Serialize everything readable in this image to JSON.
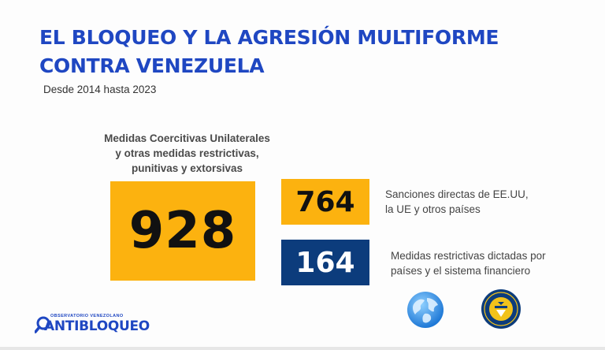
{
  "header": {
    "title": "EL BLOQUEO Y LA AGRESIÓN MULTIFORME CONTRA VENEZUELA",
    "subtitle": "Desde 2014 hasta 2023"
  },
  "main_stat": {
    "label": "Medidas Coercitivas Unilaterales\ny otras medidas restrictivas,\npunitivas y extorsivas",
    "value": "928",
    "color": "#fcb20f"
  },
  "breakdown": [
    {
      "value": "764",
      "description": "Sanciones directas de EE.UU,\nla UE y otros países",
      "color": "#fcb20f"
    },
    {
      "value": "164",
      "description": "Medidas restrictivas dictadas por\npaíses y el sistema financiero",
      "color": "#0c3c7c"
    }
  ],
  "icons": {
    "globe": "globe-icon",
    "seal": "treasury-seal-icon"
  },
  "logo": {
    "small_text": "OBSERVATORIO VENEZOLANO",
    "main_text": "ANTIBLOQUEO"
  },
  "colors": {
    "title_blue": "#1f47c2",
    "accent_yellow": "#fcb20f",
    "accent_navy": "#0c3c7c"
  }
}
